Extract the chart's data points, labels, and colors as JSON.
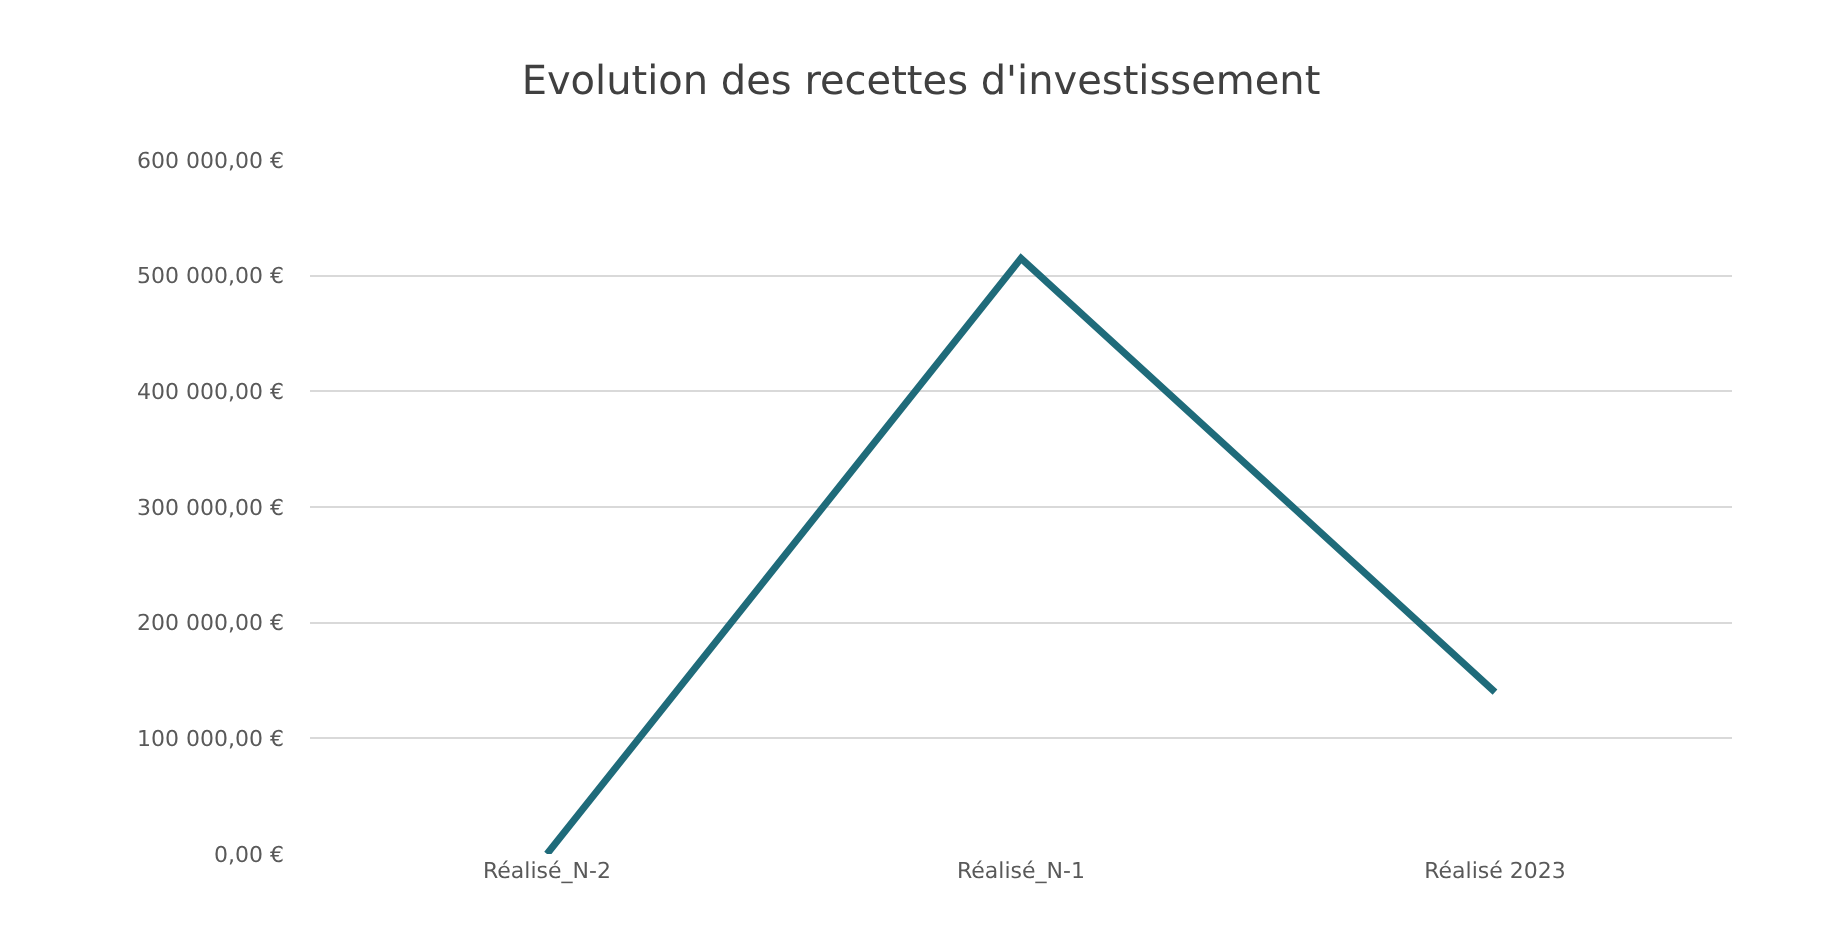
{
  "chart_data": {
    "type": "line",
    "title": "Evolution des recettes d'investissement",
    "categories": [
      "Réalisé_N-2",
      "Réalisé_N-1",
      "Réalisé 2023"
    ],
    "series": [
      {
        "color": "#1f6b7a",
        "values": [
          0,
          515000,
          140000
        ]
      }
    ],
    "ylim": [
      0,
      600000
    ],
    "yticks": [
      {
        "value": 0,
        "label": "0,00 €"
      },
      {
        "value": 100000,
        "label": "100 000,00 €"
      },
      {
        "value": 200000,
        "label": "200 000,00 €"
      },
      {
        "value": 300000,
        "label": "300 000,00 €"
      },
      {
        "value": 400000,
        "label": "400 000,00 €"
      },
      {
        "value": 500000,
        "label": "500 000,00 €"
      },
      {
        "value": 600000,
        "label": "600 000,00 €"
      }
    ],
    "grid": "y",
    "legend": false,
    "marker": "none",
    "line_style": "solid"
  }
}
